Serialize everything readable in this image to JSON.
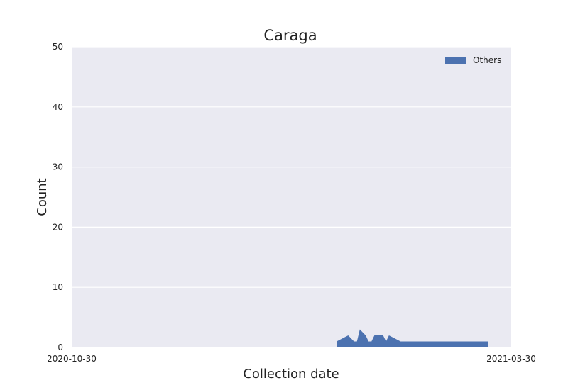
{
  "chart_data": {
    "type": "area",
    "title": "Caraga",
    "xlabel": "Collection date",
    "ylabel": "Count",
    "x_ticks": [
      "2020-10-30",
      "2021-03-30"
    ],
    "y_ticks": [
      0,
      10,
      20,
      30,
      40,
      50
    ],
    "ylim": [
      0,
      50
    ],
    "xlim": [
      "2020-10-30",
      "2021-03-30"
    ],
    "grid": true,
    "legend_position": "top-right",
    "colors": {
      "background": "#eaeaf2",
      "grid": "#ffffff",
      "series": "#4c72b0"
    },
    "series": [
      {
        "name": "Others",
        "x": [
          "2021-01-29",
          "2021-01-31",
          "2021-02-02",
          "2021-02-04",
          "2021-02-05",
          "2021-02-06",
          "2021-02-08",
          "2021-02-09",
          "2021-02-10",
          "2021-02-11",
          "2021-02-12",
          "2021-02-14",
          "2021-02-15",
          "2021-02-16",
          "2021-02-18",
          "2021-02-20",
          "2021-02-25",
          "2021-03-01",
          "2021-03-05",
          "2021-03-10",
          "2021-03-15",
          "2021-03-20",
          "2021-03-21",
          "2021-03-22"
        ],
        "values": [
          1,
          1.5,
          2,
          1,
          1,
          3,
          2,
          1,
          1,
          2,
          2,
          2,
          1,
          2,
          1.5,
          1,
          1,
          1,
          1,
          1,
          1,
          1,
          1,
          1
        ]
      }
    ]
  }
}
